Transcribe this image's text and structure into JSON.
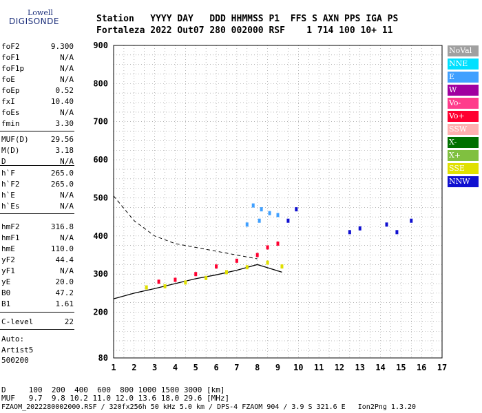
{
  "logo": {
    "line1": "Lowell",
    "line2": "DIGISONDE"
  },
  "header": {
    "line1": "Station   YYYY DAY   DDD HHMMSS P1  FFS S AXN PPS IGA PS",
    "line2": "Fortaleza 2022 Out07 280 002000 RSF    1 714 100 10+ 11"
  },
  "params": [
    {
      "k": "foF2",
      "v": "9.300"
    },
    {
      "k": "foF1",
      "v": "N/A"
    },
    {
      "k": "foF1p",
      "v": "N/A"
    },
    {
      "k": "foE",
      "v": "N/A"
    },
    {
      "k": "foEp",
      "v": "0.52"
    },
    {
      "k": "fxI",
      "v": "10.40"
    },
    {
      "k": "foEs",
      "v": "N/A"
    },
    {
      "k": "fmin",
      "v": "3.30"
    },
    {
      "k": "MUF(D)",
      "v": "29.56"
    },
    {
      "k": "M(D)",
      "v": "3.18"
    },
    {
      "k": "D",
      "v": "N/A"
    },
    {
      "k": "h`F",
      "v": "265.0"
    },
    {
      "k": "h`F2",
      "v": "265.0"
    },
    {
      "k": "h`E",
      "v": "N/A"
    },
    {
      "k": "h`Es",
      "v": "N/A"
    },
    {
      "k": "hmF2",
      "v": "316.8"
    },
    {
      "k": "hmF1",
      "v": "N/A"
    },
    {
      "k": "hmE",
      "v": "110.0"
    },
    {
      "k": "yF2",
      "v": "44.4"
    },
    {
      "k": "yF1",
      "v": "N/A"
    },
    {
      "k": "yE",
      "v": "20.0"
    },
    {
      "k": "B0",
      "v": "47.2"
    },
    {
      "k": "B1",
      "v": "1.61"
    },
    {
      "k": "C-level",
      "v": "22"
    }
  ],
  "auto": {
    "l1": "Auto:",
    "l2": "Artist5",
    "l3": "500200"
  },
  "legend": [
    {
      "label": "NoVal",
      "color": "#a0a0a0"
    },
    {
      "label": "NNE",
      "color": "#00e0ff"
    },
    {
      "label": "E",
      "color": "#40a0ff"
    },
    {
      "label": "W",
      "color": "#a000a0"
    },
    {
      "label": "Vo-",
      "color": "#ff3c8c"
    },
    {
      "label": "Vo+",
      "color": "#ff0030"
    },
    {
      "label": "SSW",
      "color": "#ffb0b0"
    },
    {
      "label": "X-",
      "color": "#007000"
    },
    {
      "label": "X+",
      "color": "#80c040"
    },
    {
      "label": "SSE",
      "color": "#e0e000"
    },
    {
      "label": "NNW",
      "color": "#1010d0"
    }
  ],
  "footer": {
    "line1": "D     100  200  400  600  800 1000 1500 3000 [km]",
    "line2": "MUF   9.7  9.8 10.2 11.0 12.0 13.6 18.0 29.6 [MHz]",
    "line3": "FZAOM_2022280002000.RSF / 320fx256h 50 kHz 5.0 km / DPS-4 FZAOM 904 / 3.9 S 321.6 E   Ion2Png 1.3.20"
  },
  "chart_data": {
    "type": "scatter",
    "xlim": [
      1,
      17
    ],
    "ylim": [
      80,
      900
    ],
    "xticks": [
      "1",
      "2",
      "3",
      "4",
      "5",
      "6",
      "7",
      "8",
      "9",
      "10",
      "11",
      "12",
      "13",
      "14",
      "15",
      "16",
      "17"
    ],
    "yticks": [
      "80",
      "200",
      "300",
      "400",
      "500",
      "600",
      "700",
      "800",
      "900"
    ],
    "grid": true,
    "legend_position": "right",
    "series": [
      {
        "name": "E",
        "color": "#40a0ff",
        "points": [
          [
            7.8,
            480
          ],
          [
            8.2,
            470
          ],
          [
            8.6,
            460
          ],
          [
            9.0,
            455
          ],
          [
            7.5,
            430
          ],
          [
            8.1,
            440
          ]
        ]
      },
      {
        "name": "Vo+",
        "color": "#ff0030",
        "points": [
          [
            3.2,
            280
          ],
          [
            4.0,
            285
          ],
          [
            5.0,
            300
          ],
          [
            6.0,
            320
          ],
          [
            7.0,
            335
          ],
          [
            8.0,
            350
          ],
          [
            8.5,
            370
          ],
          [
            9.0,
            380
          ]
        ]
      },
      {
        "name": "SSE",
        "color": "#e0e000",
        "points": [
          [
            2.6,
            265
          ],
          [
            3.5,
            268
          ],
          [
            4.5,
            278
          ],
          [
            5.5,
            290
          ],
          [
            6.5,
            305
          ],
          [
            7.5,
            318
          ],
          [
            8.5,
            330
          ],
          [
            9.2,
            320
          ]
        ]
      },
      {
        "name": "NNW",
        "color": "#1010d0",
        "points": [
          [
            9.5,
            440
          ],
          [
            9.9,
            470
          ],
          [
            12.5,
            410
          ],
          [
            13.0,
            420
          ],
          [
            14.3,
            430
          ],
          [
            14.8,
            410
          ],
          [
            15.5,
            440
          ]
        ]
      }
    ],
    "curves": {
      "profile_x": [
        1,
        2,
        3,
        4,
        5,
        6,
        7,
        8,
        9.2
      ],
      "profile_y": [
        235,
        250,
        262,
        275,
        288,
        298,
        310,
        325,
        305
      ],
      "dashed_x": [
        1,
        2,
        3,
        4,
        5,
        6,
        7,
        8
      ],
      "dashed_y": [
        505,
        440,
        400,
        380,
        370,
        360,
        350,
        340
      ]
    }
  }
}
